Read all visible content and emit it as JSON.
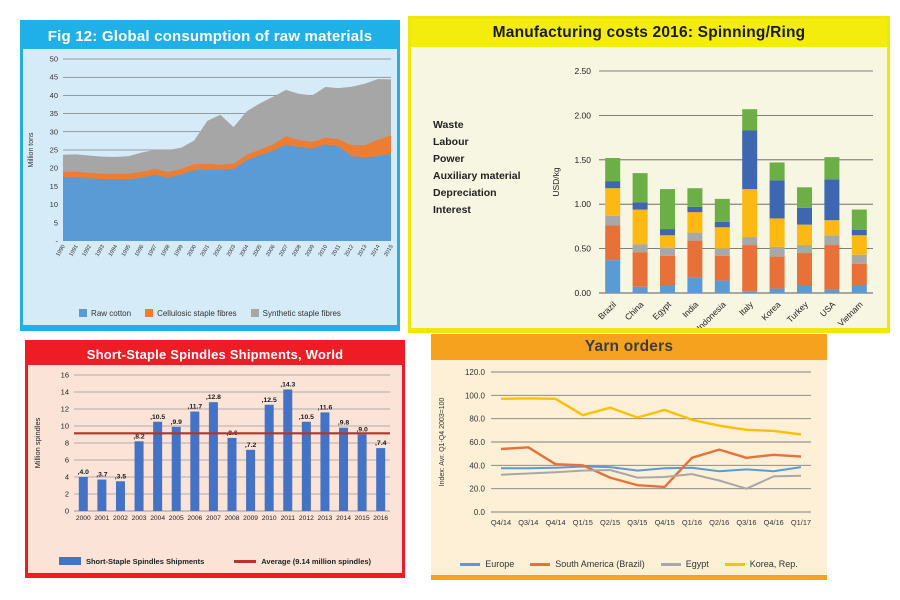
{
  "panels": [
    {
      "title": "Fig 12: Global consumption of raw materials",
      "accent": "#1fb0e8",
      "panel_bg": "#d6ebf8",
      "title_color": "#ffffff"
    },
    {
      "title": "Manufacturing costs 2016: Spinning/Ring",
      "accent": "#f3ec0c",
      "panel_bg": "#f7f6e2",
      "title_color": "#1a1a1a"
    },
    {
      "title": "Short-Staple Spindles Shipments, World",
      "accent": "#ee1c25",
      "panel_bg": "#fbe3d7",
      "title_color": "#ffffff"
    },
    {
      "title": "Yarn orders",
      "accent": "#f6a21e",
      "panel_bg": "#fdf0d6",
      "title_color": "#3d3d3d"
    }
  ],
  "chart_data": [
    {
      "type": "area",
      "stacked": true,
      "title": "Fig 12: Global consumption of raw materials",
      "ylabel": "Million tons",
      "ylim": [
        0,
        50
      ],
      "ytick_step": 5,
      "ytick_zero_label": "-",
      "x": [
        "1990",
        "1991",
        "1992",
        "1993",
        "1994",
        "1995",
        "1996",
        "1997",
        "1998",
        "1999",
        "2000",
        "2001",
        "2002",
        "2003",
        "2004",
        "2005",
        "2006",
        "2007",
        "2008",
        "2009",
        "2010",
        "2011",
        "2012",
        "2013",
        "2014",
        "2015"
      ],
      "series": [
        {
          "name": "Raw cotton",
          "color": "#5b9bd5",
          "values": [
            17.5,
            17.5,
            17.2,
            17.0,
            17.0,
            16.9,
            17.4,
            18.2,
            17.4,
            18.3,
            19.4,
            19.7,
            19.5,
            19.8,
            22.2,
            23.5,
            24.8,
            26.5,
            25.8,
            25.4,
            26.5,
            26.0,
            23.3,
            23.0,
            23.3,
            24.0
          ]
        },
        {
          "name": "Cellulosic staple fibres",
          "color": "#ed7d31",
          "values": [
            1.5,
            1.5,
            1.5,
            1.5,
            1.5,
            1.6,
            1.6,
            1.6,
            1.5,
            1.5,
            1.7,
            1.5,
            1.5,
            1.4,
            1.5,
            1.6,
            1.7,
            2.3,
            1.9,
            1.8,
            1.9,
            1.9,
            3.0,
            3.3,
            4.5,
            5.0
          ]
        },
        {
          "name": "Synthetic staple fibres",
          "color": "#a6a6a6",
          "values": [
            4.7,
            4.8,
            4.8,
            4.7,
            4.6,
            4.8,
            5.3,
            5.2,
            6.1,
            5.8,
            6.5,
            11.8,
            13.7,
            10.1,
            11.9,
            12.7,
            13.1,
            12.7,
            12.7,
            12.8,
            13.9,
            14.1,
            16.1,
            16.9,
            16.7,
            15.4
          ]
        }
      ],
      "grid": true,
      "legend_position": "bottom"
    },
    {
      "type": "bar",
      "stacked": true,
      "title": "Manufacturing costs 2016: Spinning/Ring",
      "ylabel": "USD/kg",
      "ylim": [
        0,
        2.5
      ],
      "ytick_step": 0.5,
      "categories": [
        "Brazil",
        "China",
        "Egypt",
        "India",
        "Indonesia",
        "Italy",
        "Korea",
        "Turkey",
        "USA",
        "Vietnam"
      ],
      "series": [
        {
          "name": "Interest",
          "color": "#5b9bd5",
          "values": [
            0.37,
            0.07,
            0.09,
            0.17,
            0.14,
            0.02,
            0.05,
            0.09,
            0.04,
            0.09
          ]
        },
        {
          "name": "Depreciation",
          "color": "#e8713a",
          "values": [
            0.39,
            0.39,
            0.33,
            0.42,
            0.28,
            0.52,
            0.36,
            0.36,
            0.5,
            0.24
          ]
        },
        {
          "name": "Auxiliary material",
          "color": "#a8a8a8",
          "values": [
            0.11,
            0.09,
            0.09,
            0.09,
            0.08,
            0.09,
            0.11,
            0.09,
            0.11,
            0.1
          ]
        },
        {
          "name": "Power",
          "color": "#fdb913",
          "values": [
            0.31,
            0.39,
            0.14,
            0.23,
            0.24,
            0.54,
            0.32,
            0.23,
            0.17,
            0.22
          ]
        },
        {
          "name": "Labour",
          "color": "#3f66b0",
          "values": [
            0.08,
            0.08,
            0.07,
            0.06,
            0.06,
            0.66,
            0.43,
            0.19,
            0.46,
            0.06
          ]
        },
        {
          "name": "Waste",
          "color": "#6daf47",
          "values": [
            0.26,
            0.33,
            0.45,
            0.21,
            0.26,
            0.24,
            0.2,
            0.23,
            0.25,
            0.23
          ]
        }
      ],
      "legend_top_to_bottom": [
        "Waste",
        "Labour",
        "Power",
        "Auxiliary material",
        "Depreciation",
        "Interest"
      ],
      "grid": true,
      "legend_position": "left"
    },
    {
      "type": "bar",
      "stacked": false,
      "title": "Short-Staple Spindles Shipments, World",
      "ylabel": "Million spindles",
      "ylim": [
        0,
        16
      ],
      "ytick_step": 2,
      "categories": [
        "2000",
        "2001",
        "2002",
        "2003",
        "2004",
        "2005",
        "2006",
        "2007",
        "2008",
        "2009",
        "2010",
        "2011",
        "2012",
        "2013",
        "2014",
        "2015",
        "2016"
      ],
      "values": [
        4.0,
        3.7,
        3.5,
        8.2,
        10.5,
        9.9,
        11.7,
        12.8,
        8.6,
        7.2,
        12.5,
        14.3,
        10.5,
        11.6,
        9.8,
        9.0,
        7.4
      ],
      "data_labels": [
        ",4.0",
        ",3.7",
        ",3.5",
        ",8.2",
        ",10.5",
        ",9.9",
        ",11.7",
        ",12.8",
        ",8.6",
        ",7.2",
        ",12.5",
        ",14.3",
        ",10.5",
        ",11.6",
        ",9.8",
        ",9.0",
        ",7.4"
      ],
      "bar_color": "#4472c4",
      "bar_legend_label": "Short-Staple Spindles Shipments",
      "average_line": {
        "value": 9.14,
        "color": "#b5342a",
        "label": "Average (9.14 million spindles)"
      },
      "grid": true,
      "legend_position": "bottom"
    },
    {
      "type": "line",
      "title": "Yarn orders",
      "ylabel": "Index: Avr. Q1-Q4 2003=100",
      "ylim": [
        0,
        120
      ],
      "ytick_step": 20,
      "ytick_decimals": 1,
      "x": [
        "Q4/14",
        "Q3/14",
        "Q4/14",
        "Q1/15",
        "Q2/15",
        "Q3/15",
        "Q4/15",
        "Q1/16",
        "Q2/16",
        "Q3/16",
        "Q4/16",
        "Q1/17"
      ],
      "series": [
        {
          "name": "Europe",
          "color": "#5b9bd5",
          "values": [
            37.5,
            37.5,
            38,
            39,
            38.5,
            35.5,
            37.5,
            38,
            35,
            36.5,
            35,
            38.5
          ]
        },
        {
          "name": "South America (Brazil)",
          "color": "#e8713a",
          "values": [
            54,
            55.5,
            41,
            40,
            29.5,
            23,
            21.5,
            46.5,
            53.5,
            46.5,
            49,
            47.5
          ]
        },
        {
          "name": "Egypt",
          "color": "#a8a8a8",
          "values": [
            32,
            33,
            34,
            35.5,
            36,
            29.5,
            30,
            32.5,
            27,
            20,
            30.5,
            31
          ]
        },
        {
          "name": "Korea, Rep.",
          "color": "#ffc000",
          "values": [
            97,
            97.5,
            97,
            83,
            89.5,
            81,
            87.5,
            79,
            74,
            70.5,
            69.5,
            66.5
          ]
        }
      ],
      "grid": true,
      "legend_position": "bottom"
    }
  ]
}
